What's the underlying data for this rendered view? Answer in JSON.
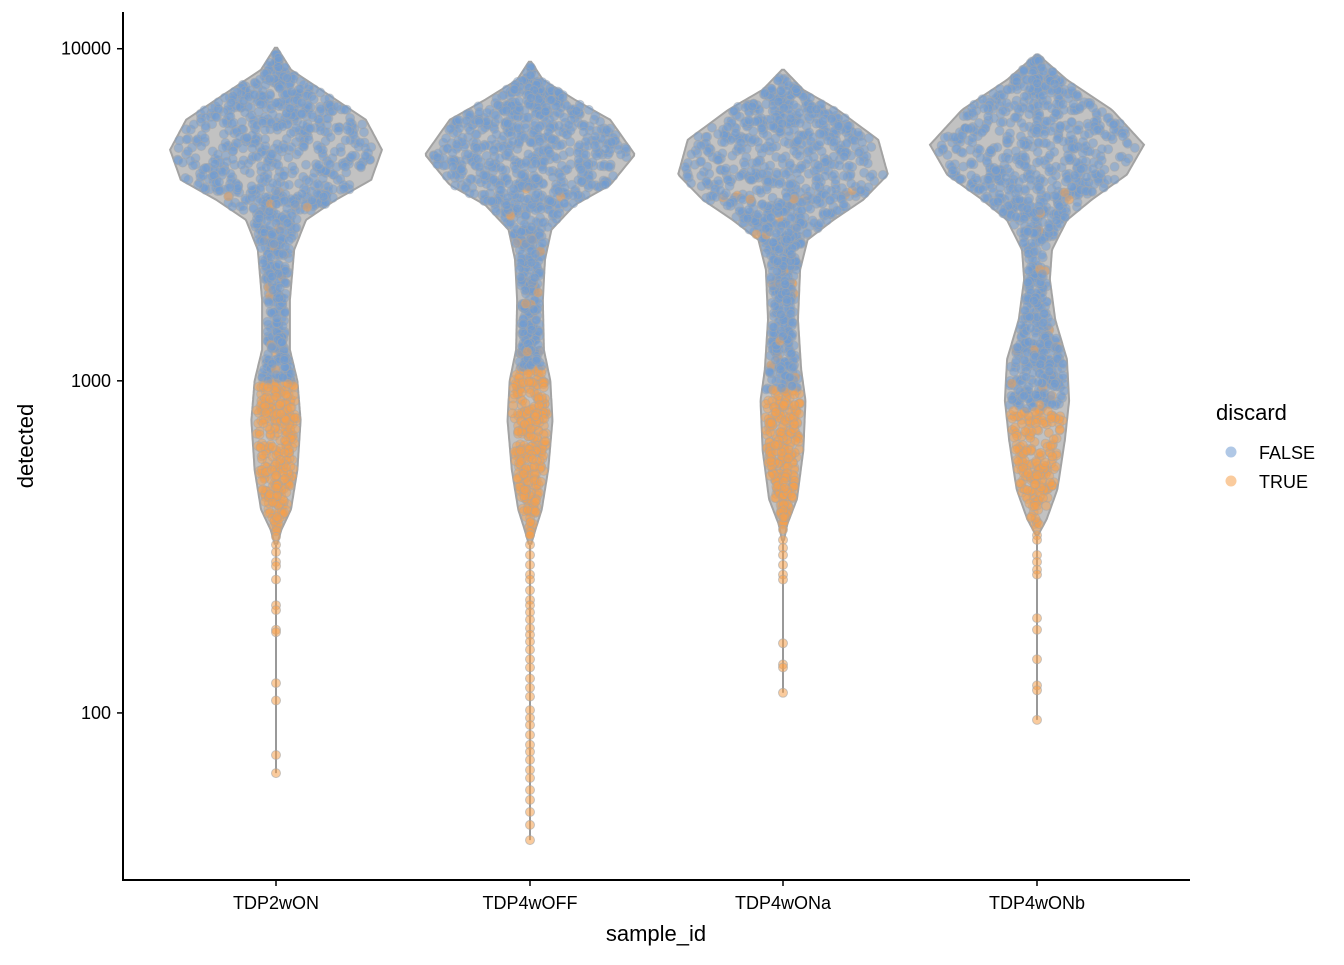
{
  "chart_data": {
    "type": "violin",
    "xlabel": "sample_id",
    "ylabel": "detected",
    "yscale": "log10",
    "ylim": [
      31.4,
      12900
    ],
    "yticks": [
      100,
      1000,
      10000
    ],
    "ytick_labels": [
      "100",
      "1000",
      "10000"
    ],
    "categories": [
      "TDP2wON",
      "TDP4wOFF",
      "TDP4wONa",
      "TDP4wONb"
    ],
    "legend": {
      "title": "discard",
      "position": "right",
      "entries": [
        {
          "label": "FALSE",
          "color": "#6f9bd1"
        },
        {
          "label": "TRUE",
          "color": "#f5a04c"
        }
      ]
    },
    "colors": {
      "violin_outline": "#a3a3a3",
      "violin_fill": "#c2c2c2",
      "axis": "#000000"
    },
    "series": [
      {
        "name": "TDP2wON",
        "discard_threshold": 1000,
        "max": 10070,
        "min": 65.9,
        "density_profile": [
          [
            10070,
            0.01
          ],
          [
            8640,
            0.14
          ],
          [
            7020,
            0.56
          ],
          [
            6110,
            0.84
          ],
          [
            4960,
            0.99
          ],
          [
            4030,
            0.89
          ],
          [
            3510,
            0.56
          ],
          [
            3050,
            0.28
          ],
          [
            2480,
            0.17
          ],
          [
            1750,
            0.13
          ],
          [
            1240,
            0.13
          ],
          [
            1000,
            0.2
          ],
          [
            760,
            0.23
          ],
          [
            540,
            0.2
          ],
          [
            410,
            0.14
          ],
          [
            356,
            0.05
          ],
          [
            321,
            0.01
          ]
        ],
        "tail_points": [
          339,
          321,
          305,
          285,
          277,
          252,
          211,
          204,
          178,
          175,
          123,
          109,
          74.7,
          65.9
        ]
      },
      {
        "name": "TDP4wOFF",
        "discard_threshold": 1090,
        "max": 9140,
        "min": 41.4,
        "density_profile": [
          [
            9140,
            0.01
          ],
          [
            8060,
            0.12
          ],
          [
            7020,
            0.42
          ],
          [
            6110,
            0.75
          ],
          [
            4800,
            0.98
          ],
          [
            3890,
            0.75
          ],
          [
            3390,
            0.42
          ],
          [
            2850,
            0.2
          ],
          [
            2320,
            0.14
          ],
          [
            1750,
            0.12
          ],
          [
            1240,
            0.13
          ],
          [
            1000,
            0.19
          ],
          [
            760,
            0.21
          ],
          [
            540,
            0.17
          ],
          [
            410,
            0.11
          ],
          [
            356,
            0.05
          ],
          [
            321,
            0.01
          ]
        ],
        "tail_points": [
          343,
          321,
          299,
          279,
          261,
          252,
          234,
          219,
          211,
          201,
          191,
          180,
          172,
          164,
          155,
          145,
          137,
          127,
          119,
          112,
          102,
          96.6,
          92.0,
          85.9,
          80.2,
          76.4,
          72.2,
          67.3,
          63.7,
          58.6,
          54.7,
          50.3,
          46.0,
          41.4
        ]
      },
      {
        "name": "TDP4wONa",
        "discard_threshold": 940,
        "max": 8640,
        "min": 115,
        "density_profile": [
          [
            8640,
            0.01
          ],
          [
            7520,
            0.19
          ],
          [
            6550,
            0.51
          ],
          [
            5320,
            0.89
          ],
          [
            4180,
            0.98
          ],
          [
            3510,
            0.75
          ],
          [
            3050,
            0.47
          ],
          [
            2660,
            0.23
          ],
          [
            2160,
            0.16
          ],
          [
            1530,
            0.14
          ],
          [
            1080,
            0.17
          ],
          [
            871,
            0.21
          ],
          [
            617,
            0.19
          ],
          [
            440,
            0.13
          ],
          [
            370,
            0.04
          ],
          [
            332,
            0.01
          ]
        ],
        "tail_points": [
          356,
          332,
          314,
          299,
          279,
          261,
          252,
          162,
          140,
          137,
          115
        ]
      },
      {
        "name": "TDP4wONb",
        "discard_threshold": 820,
        "max": 9590,
        "min": 95.3,
        "density_profile": [
          [
            9590,
            0.01
          ],
          [
            8060,
            0.28
          ],
          [
            6550,
            0.7
          ],
          [
            5140,
            1.0
          ],
          [
            4180,
            0.84
          ],
          [
            3510,
            0.51
          ],
          [
            3050,
            0.28
          ],
          [
            2480,
            0.14
          ],
          [
            2020,
            0.12
          ],
          [
            1530,
            0.17
          ],
          [
            1160,
            0.28
          ],
          [
            871,
            0.3
          ],
          [
            662,
            0.26
          ],
          [
            471,
            0.19
          ],
          [
            383,
            0.09
          ],
          [
            343,
            0.01
          ]
        ],
        "tail_points": [
          343,
          332,
          299,
          285,
          270,
          261,
          193,
          178,
          145,
          121,
          117,
          95.3
        ]
      }
    ]
  }
}
